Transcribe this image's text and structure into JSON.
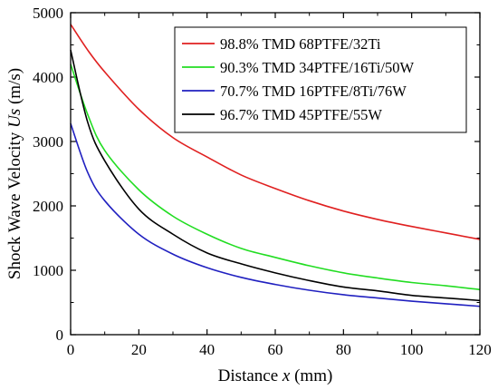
{
  "chart_data": {
    "type": "line",
    "xlabel": {
      "prefix": "Distance ",
      "var": "x",
      "suffix": " (mm)"
    },
    "ylabel": {
      "prefix": "Shock Wave Velocity ",
      "var": "Us",
      "suffix": " (m/s)"
    },
    "xlim": [
      0,
      120
    ],
    "ylim": [
      0,
      5000
    ],
    "x_ticks": [
      0,
      20,
      40,
      60,
      80,
      100,
      120
    ],
    "y_ticks": [
      0,
      1000,
      2000,
      3000,
      4000,
      5000
    ],
    "grid": false,
    "legend_position": "top-right",
    "series": [
      {
        "name": "98.8% TMD 68PTFE/32Ti",
        "color": "#e02020",
        "x": [
          0,
          5,
          10,
          20,
          30,
          40,
          50,
          60,
          70,
          80,
          90,
          100,
          110,
          120
        ],
        "y": [
          4820,
          4420,
          4080,
          3500,
          3060,
          2760,
          2480,
          2270,
          2080,
          1920,
          1790,
          1680,
          1580,
          1480
        ]
      },
      {
        "name": "90.3% TMD 34PTFE/16Ti/50W",
        "color": "#22dd22",
        "x": [
          0,
          5,
          10,
          20,
          30,
          40,
          50,
          60,
          70,
          80,
          90,
          100,
          110,
          120
        ],
        "y": [
          4200,
          3420,
          2860,
          2250,
          1840,
          1560,
          1340,
          1200,
          1070,
          960,
          880,
          810,
          760,
          700
        ]
      },
      {
        "name": "70.7% TMD 16PTFE/8Ti/76W",
        "color": "#2020c0",
        "x": [
          0,
          5,
          10,
          20,
          30,
          40,
          50,
          60,
          70,
          80,
          90,
          100,
          110,
          120
        ],
        "y": [
          3280,
          2520,
          2080,
          1560,
          1250,
          1040,
          890,
          780,
          690,
          620,
          570,
          520,
          480,
          440
        ]
      },
      {
        "name": "96.7% TMD 45PTFE/55W",
        "color": "#000000",
        "x": [
          0,
          5,
          10,
          20,
          30,
          40,
          50,
          60,
          70,
          80,
          90,
          100,
          110,
          120
        ],
        "y": [
          4420,
          3300,
          2700,
          1950,
          1560,
          1270,
          1100,
          960,
          840,
          740,
          680,
          610,
          570,
          530
        ]
      }
    ]
  }
}
